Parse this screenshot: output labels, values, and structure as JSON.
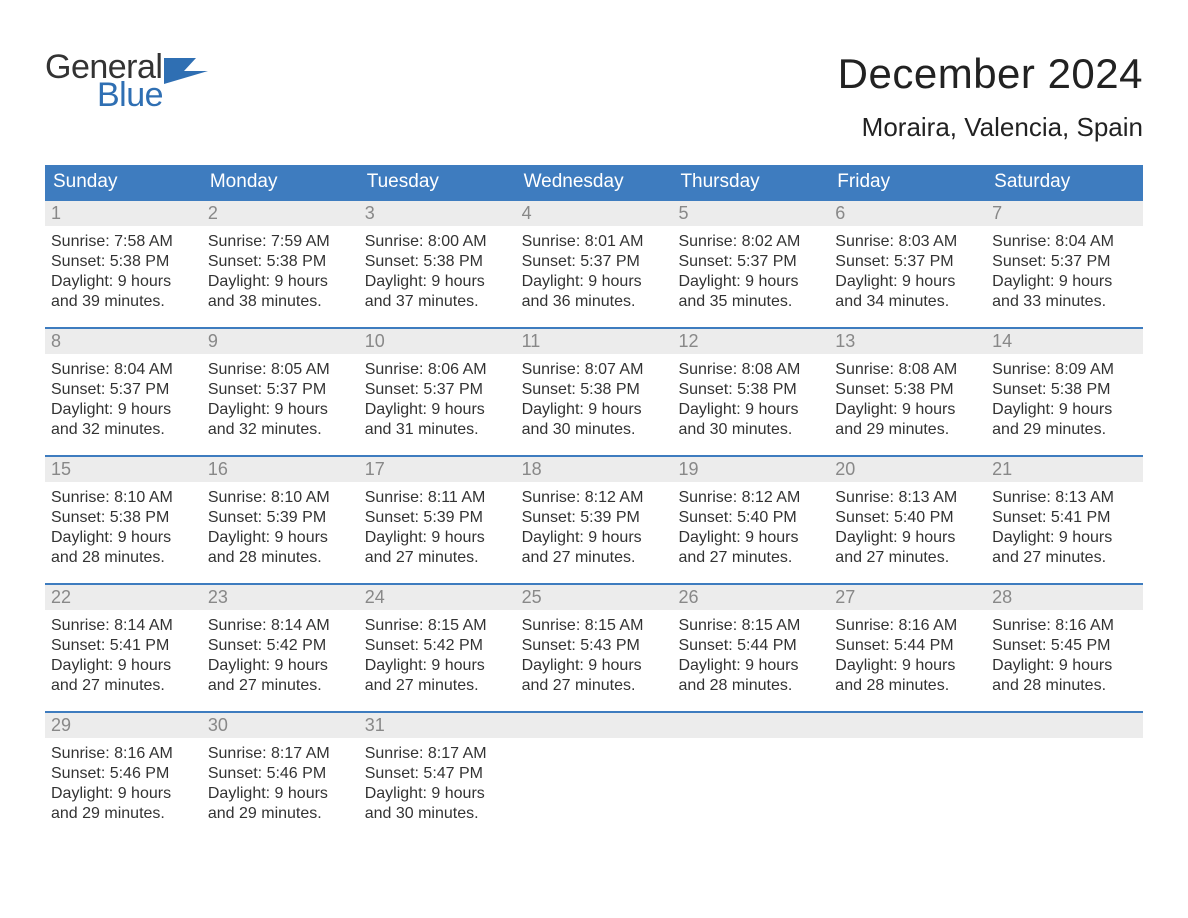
{
  "logo": {
    "text1": "General",
    "text2": "Blue",
    "flag_color": "#2f6fb3",
    "text1_color": "#333333"
  },
  "header": {
    "month_title": "December 2024",
    "location": "Moraira, Valencia, Spain",
    "title_fontsize": 42,
    "location_fontsize": 26
  },
  "styling": {
    "header_bg": "#3e7cbf",
    "header_text_color": "#ffffff",
    "daynum_bg": "#ececec",
    "daynum_color": "#888888",
    "week_border_color": "#3e7cbf",
    "body_text_color": "#333333",
    "page_bg": "#ffffff",
    "body_fontsize": 16,
    "header_fontsize": 19,
    "daynum_fontsize": 18
  },
  "weekdays": [
    "Sunday",
    "Monday",
    "Tuesday",
    "Wednesday",
    "Thursday",
    "Friday",
    "Saturday"
  ],
  "weeks": [
    [
      {
        "n": "1",
        "sunrise": "Sunrise: 7:58 AM",
        "sunset": "Sunset: 5:38 PM",
        "d1": "Daylight: 9 hours",
        "d2": "and 39 minutes."
      },
      {
        "n": "2",
        "sunrise": "Sunrise: 7:59 AM",
        "sunset": "Sunset: 5:38 PM",
        "d1": "Daylight: 9 hours",
        "d2": "and 38 minutes."
      },
      {
        "n": "3",
        "sunrise": "Sunrise: 8:00 AM",
        "sunset": "Sunset: 5:38 PM",
        "d1": "Daylight: 9 hours",
        "d2": "and 37 minutes."
      },
      {
        "n": "4",
        "sunrise": "Sunrise: 8:01 AM",
        "sunset": "Sunset: 5:37 PM",
        "d1": "Daylight: 9 hours",
        "d2": "and 36 minutes."
      },
      {
        "n": "5",
        "sunrise": "Sunrise: 8:02 AM",
        "sunset": "Sunset: 5:37 PM",
        "d1": "Daylight: 9 hours",
        "d2": "and 35 minutes."
      },
      {
        "n": "6",
        "sunrise": "Sunrise: 8:03 AM",
        "sunset": "Sunset: 5:37 PM",
        "d1": "Daylight: 9 hours",
        "d2": "and 34 minutes."
      },
      {
        "n": "7",
        "sunrise": "Sunrise: 8:04 AM",
        "sunset": "Sunset: 5:37 PM",
        "d1": "Daylight: 9 hours",
        "d2": "and 33 minutes."
      }
    ],
    [
      {
        "n": "8",
        "sunrise": "Sunrise: 8:04 AM",
        "sunset": "Sunset: 5:37 PM",
        "d1": "Daylight: 9 hours",
        "d2": "and 32 minutes."
      },
      {
        "n": "9",
        "sunrise": "Sunrise: 8:05 AM",
        "sunset": "Sunset: 5:37 PM",
        "d1": "Daylight: 9 hours",
        "d2": "and 32 minutes."
      },
      {
        "n": "10",
        "sunrise": "Sunrise: 8:06 AM",
        "sunset": "Sunset: 5:37 PM",
        "d1": "Daylight: 9 hours",
        "d2": "and 31 minutes."
      },
      {
        "n": "11",
        "sunrise": "Sunrise: 8:07 AM",
        "sunset": "Sunset: 5:38 PM",
        "d1": "Daylight: 9 hours",
        "d2": "and 30 minutes."
      },
      {
        "n": "12",
        "sunrise": "Sunrise: 8:08 AM",
        "sunset": "Sunset: 5:38 PM",
        "d1": "Daylight: 9 hours",
        "d2": "and 30 minutes."
      },
      {
        "n": "13",
        "sunrise": "Sunrise: 8:08 AM",
        "sunset": "Sunset: 5:38 PM",
        "d1": "Daylight: 9 hours",
        "d2": "and 29 minutes."
      },
      {
        "n": "14",
        "sunrise": "Sunrise: 8:09 AM",
        "sunset": "Sunset: 5:38 PM",
        "d1": "Daylight: 9 hours",
        "d2": "and 29 minutes."
      }
    ],
    [
      {
        "n": "15",
        "sunrise": "Sunrise: 8:10 AM",
        "sunset": "Sunset: 5:38 PM",
        "d1": "Daylight: 9 hours",
        "d2": "and 28 minutes."
      },
      {
        "n": "16",
        "sunrise": "Sunrise: 8:10 AM",
        "sunset": "Sunset: 5:39 PM",
        "d1": "Daylight: 9 hours",
        "d2": "and 28 minutes."
      },
      {
        "n": "17",
        "sunrise": "Sunrise: 8:11 AM",
        "sunset": "Sunset: 5:39 PM",
        "d1": "Daylight: 9 hours",
        "d2": "and 27 minutes."
      },
      {
        "n": "18",
        "sunrise": "Sunrise: 8:12 AM",
        "sunset": "Sunset: 5:39 PM",
        "d1": "Daylight: 9 hours",
        "d2": "and 27 minutes."
      },
      {
        "n": "19",
        "sunrise": "Sunrise: 8:12 AM",
        "sunset": "Sunset: 5:40 PM",
        "d1": "Daylight: 9 hours",
        "d2": "and 27 minutes."
      },
      {
        "n": "20",
        "sunrise": "Sunrise: 8:13 AM",
        "sunset": "Sunset: 5:40 PM",
        "d1": "Daylight: 9 hours",
        "d2": "and 27 minutes."
      },
      {
        "n": "21",
        "sunrise": "Sunrise: 8:13 AM",
        "sunset": "Sunset: 5:41 PM",
        "d1": "Daylight: 9 hours",
        "d2": "and 27 minutes."
      }
    ],
    [
      {
        "n": "22",
        "sunrise": "Sunrise: 8:14 AM",
        "sunset": "Sunset: 5:41 PM",
        "d1": "Daylight: 9 hours",
        "d2": "and 27 minutes."
      },
      {
        "n": "23",
        "sunrise": "Sunrise: 8:14 AM",
        "sunset": "Sunset: 5:42 PM",
        "d1": "Daylight: 9 hours",
        "d2": "and 27 minutes."
      },
      {
        "n": "24",
        "sunrise": "Sunrise: 8:15 AM",
        "sunset": "Sunset: 5:42 PM",
        "d1": "Daylight: 9 hours",
        "d2": "and 27 minutes."
      },
      {
        "n": "25",
        "sunrise": "Sunrise: 8:15 AM",
        "sunset": "Sunset: 5:43 PM",
        "d1": "Daylight: 9 hours",
        "d2": "and 27 minutes."
      },
      {
        "n": "26",
        "sunrise": "Sunrise: 8:15 AM",
        "sunset": "Sunset: 5:44 PM",
        "d1": "Daylight: 9 hours",
        "d2": "and 28 minutes."
      },
      {
        "n": "27",
        "sunrise": "Sunrise: 8:16 AM",
        "sunset": "Sunset: 5:44 PM",
        "d1": "Daylight: 9 hours",
        "d2": "and 28 minutes."
      },
      {
        "n": "28",
        "sunrise": "Sunrise: 8:16 AM",
        "sunset": "Sunset: 5:45 PM",
        "d1": "Daylight: 9 hours",
        "d2": "and 28 minutes."
      }
    ],
    [
      {
        "n": "29",
        "sunrise": "Sunrise: 8:16 AM",
        "sunset": "Sunset: 5:46 PM",
        "d1": "Daylight: 9 hours",
        "d2": "and 29 minutes."
      },
      {
        "n": "30",
        "sunrise": "Sunrise: 8:17 AM",
        "sunset": "Sunset: 5:46 PM",
        "d1": "Daylight: 9 hours",
        "d2": "and 29 minutes."
      },
      {
        "n": "31",
        "sunrise": "Sunrise: 8:17 AM",
        "sunset": "Sunset: 5:47 PM",
        "d1": "Daylight: 9 hours",
        "d2": "and 30 minutes."
      },
      {
        "empty": true
      },
      {
        "empty": true
      },
      {
        "empty": true
      },
      {
        "empty": true
      }
    ]
  ]
}
